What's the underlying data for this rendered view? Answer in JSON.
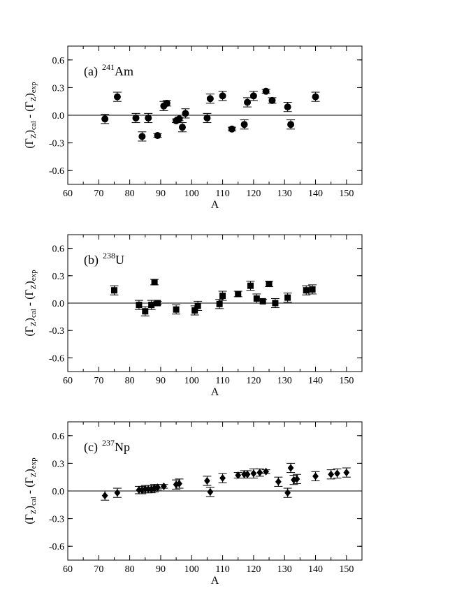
{
  "chart_data": [
    {
      "type": "scatter",
      "panel_label": "(a)",
      "isotope_mass": "241",
      "isotope_symbol": "Am",
      "marker": "circle",
      "xlabel": "A",
      "ylabel_parts": [
        "(Γ",
        "Z",
        ")",
        "cal",
        " - (Γ",
        "Z",
        ")",
        "exp"
      ],
      "xlim": [
        60,
        155
      ],
      "ylim": [
        -0.75,
        0.75
      ],
      "xticks": [
        60,
        70,
        80,
        90,
        100,
        110,
        120,
        130,
        140,
        150
      ],
      "yticks": [
        -0.6,
        -0.3,
        0.0,
        0.3,
        0.6
      ],
      "ytick_labels": [
        "-0.6",
        "-0.3",
        "0.0",
        "0.3",
        "0.6"
      ],
      "zero_line": true,
      "points": [
        {
          "x": 72,
          "y": -0.04,
          "err": 0.05
        },
        {
          "x": 76,
          "y": 0.2,
          "err": 0.05
        },
        {
          "x": 82,
          "y": -0.03,
          "err": 0.05
        },
        {
          "x": 84,
          "y": -0.23,
          "err": 0.05
        },
        {
          "x": 86,
          "y": -0.03,
          "err": 0.05
        },
        {
          "x": 89,
          "y": -0.22,
          "err": 0.02
        },
        {
          "x": 91,
          "y": 0.1,
          "err": 0.05
        },
        {
          "x": 92,
          "y": 0.13,
          "err": 0.03
        },
        {
          "x": 95,
          "y": -0.06,
          "err": 0.02
        },
        {
          "x": 96,
          "y": -0.04,
          "err": 0.02
        },
        {
          "x": 97,
          "y": -0.13,
          "err": 0.05
        },
        {
          "x": 98,
          "y": 0.02,
          "err": 0.05
        },
        {
          "x": 105,
          "y": -0.03,
          "err": 0.05
        },
        {
          "x": 106,
          "y": 0.18,
          "err": 0.05
        },
        {
          "x": 110,
          "y": 0.21,
          "err": 0.05
        },
        {
          "x": 113,
          "y": -0.15,
          "err": 0.02
        },
        {
          "x": 117,
          "y": -0.1,
          "err": 0.05
        },
        {
          "x": 118,
          "y": 0.14,
          "err": 0.05
        },
        {
          "x": 120,
          "y": 0.21,
          "err": 0.05
        },
        {
          "x": 124,
          "y": 0.26,
          "err": 0.02
        },
        {
          "x": 126,
          "y": 0.16,
          "err": 0.03
        },
        {
          "x": 131,
          "y": 0.09,
          "err": 0.05
        },
        {
          "x": 132,
          "y": -0.1,
          "err": 0.05
        },
        {
          "x": 140,
          "y": 0.2,
          "err": 0.05
        }
      ]
    },
    {
      "type": "scatter",
      "panel_label": "(b)",
      "isotope_mass": "238",
      "isotope_symbol": "U",
      "marker": "square",
      "xlabel": "A",
      "ylabel_parts": [
        "(Γ",
        "Z",
        ")",
        "cal",
        " - (Γ",
        "Z",
        ")",
        "exp"
      ],
      "xlim": [
        60,
        155
      ],
      "ylim": [
        -0.75,
        0.75
      ],
      "xticks": [
        60,
        70,
        80,
        90,
        100,
        110,
        120,
        130,
        140,
        150
      ],
      "yticks": [
        -0.6,
        -0.3,
        0.0,
        0.3,
        0.6
      ],
      "ytick_labels": [
        "-0.6",
        "-0.3",
        "0.0",
        "0.3",
        "0.6"
      ],
      "zero_line": true,
      "points": [
        {
          "x": 75,
          "y": 0.14,
          "err": 0.05
        },
        {
          "x": 83,
          "y": -0.02,
          "err": 0.05
        },
        {
          "x": 85,
          "y": -0.09,
          "err": 0.05
        },
        {
          "x": 87,
          "y": -0.02,
          "err": 0.05
        },
        {
          "x": 88,
          "y": 0.23,
          "err": 0.03
        },
        {
          "x": 89,
          "y": 0.0,
          "err": 0.02
        },
        {
          "x": 95,
          "y": -0.07,
          "err": 0.05
        },
        {
          "x": 101,
          "y": -0.08,
          "err": 0.05
        },
        {
          "x": 102,
          "y": -0.03,
          "err": 0.05
        },
        {
          "x": 109,
          "y": -0.01,
          "err": 0.05
        },
        {
          "x": 110,
          "y": 0.08,
          "err": 0.05
        },
        {
          "x": 115,
          "y": 0.1,
          "err": 0.03
        },
        {
          "x": 119,
          "y": 0.19,
          "err": 0.05
        },
        {
          "x": 121,
          "y": 0.05,
          "err": 0.05
        },
        {
          "x": 123,
          "y": 0.02,
          "err": 0.02
        },
        {
          "x": 125,
          "y": 0.21,
          "err": 0.03
        },
        {
          "x": 127,
          "y": 0.0,
          "err": 0.05
        },
        {
          "x": 131,
          "y": 0.06,
          "err": 0.05
        },
        {
          "x": 137,
          "y": 0.14,
          "err": 0.05
        },
        {
          "x": 139,
          "y": 0.15,
          "err": 0.05
        }
      ]
    },
    {
      "type": "scatter",
      "panel_label": "(c)",
      "isotope_mass": "237",
      "isotope_symbol": "Np",
      "marker": "diamond",
      "xlabel": "A",
      "ylabel_parts": [
        "(Γ",
        "Z",
        ")",
        "cal",
        " - (Γ",
        "Z",
        ")",
        "exp"
      ],
      "xlim": [
        60,
        155
      ],
      "ylim": [
        -0.75,
        0.75
      ],
      "xticks": [
        60,
        70,
        80,
        90,
        100,
        110,
        120,
        130,
        140,
        150
      ],
      "yticks": [
        -0.6,
        -0.3,
        0.0,
        0.3,
        0.6
      ],
      "ytick_labels": [
        "-0.6",
        "-0.3",
        "0.0",
        "0.3",
        "0.6"
      ],
      "zero_line": true,
      "points": [
        {
          "x": 72,
          "y": -0.05,
          "err": 0.05
        },
        {
          "x": 76,
          "y": -0.02,
          "err": 0.05
        },
        {
          "x": 83,
          "y": 0.01,
          "err": 0.04
        },
        {
          "x": 84,
          "y": 0.01,
          "err": 0.04
        },
        {
          "x": 85,
          "y": 0.02,
          "err": 0.04
        },
        {
          "x": 86,
          "y": 0.02,
          "err": 0.04
        },
        {
          "x": 87,
          "y": 0.02,
          "err": 0.04
        },
        {
          "x": 88,
          "y": 0.03,
          "err": 0.04
        },
        {
          "x": 89,
          "y": 0.04,
          "err": 0.03
        },
        {
          "x": 91,
          "y": 0.05,
          "err": 0.02
        },
        {
          "x": 95,
          "y": 0.07,
          "err": 0.05
        },
        {
          "x": 96,
          "y": 0.08,
          "err": 0.05
        },
        {
          "x": 105,
          "y": 0.11,
          "err": 0.05
        },
        {
          "x": 106,
          "y": -0.01,
          "err": 0.05
        },
        {
          "x": 110,
          "y": 0.14,
          "err": 0.05
        },
        {
          "x": 115,
          "y": 0.17,
          "err": 0.03
        },
        {
          "x": 117,
          "y": 0.18,
          "err": 0.04
        },
        {
          "x": 118,
          "y": 0.18,
          "err": 0.04
        },
        {
          "x": 120,
          "y": 0.19,
          "err": 0.05
        },
        {
          "x": 122,
          "y": 0.2,
          "err": 0.04
        },
        {
          "x": 124,
          "y": 0.21,
          "err": 0.02
        },
        {
          "x": 128,
          "y": 0.1,
          "err": 0.05
        },
        {
          "x": 131,
          "y": -0.02,
          "err": 0.05
        },
        {
          "x": 132,
          "y": 0.25,
          "err": 0.05
        },
        {
          "x": 133,
          "y": 0.12,
          "err": 0.05
        },
        {
          "x": 134,
          "y": 0.13,
          "err": 0.05
        },
        {
          "x": 140,
          "y": 0.16,
          "err": 0.05
        },
        {
          "x": 145,
          "y": 0.18,
          "err": 0.05
        },
        {
          "x": 147,
          "y": 0.19,
          "err": 0.05
        },
        {
          "x": 150,
          "y": 0.2,
          "err": 0.05
        }
      ]
    }
  ]
}
